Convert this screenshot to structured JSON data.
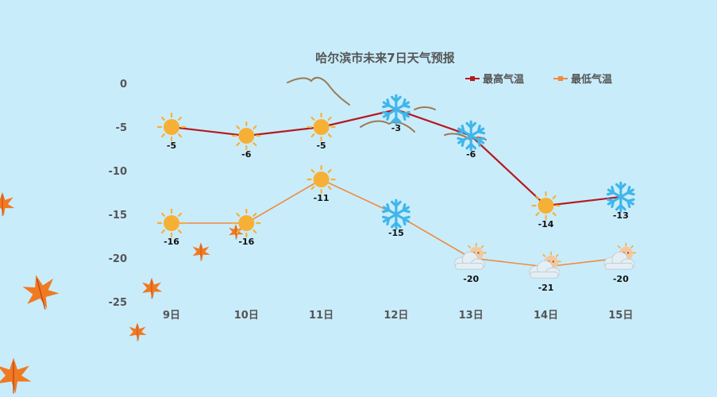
{
  "colors": {
    "background": "#c9ecfb",
    "high_line": "#b51a1f",
    "low_line": "#f08a3c",
    "sun": "#f7b036",
    "snow": "#3fb6ea",
    "text": "#555555"
  },
  "chart_data": {
    "type": "line",
    "title": "哈尔滨市未来7日天气预报",
    "categories": [
      "9日",
      "10日",
      "11日",
      "12日",
      "13日",
      "14日",
      "15日"
    ],
    "ylim": [
      -25,
      0
    ],
    "yticks": [
      0,
      -5,
      -10,
      -15,
      -20,
      -25
    ],
    "grid": false,
    "legend_position": "top-right",
    "series": [
      {
        "name": "最高气温",
        "values": [
          -5,
          -6,
          -5,
          -3,
          -6,
          -14,
          -13
        ],
        "icons": [
          "sun-icon",
          "sun-icon",
          "sun-icon",
          "snowflake-icon",
          "snowflake-icon",
          "sun-icon",
          "snowflake-icon"
        ]
      },
      {
        "name": "最低气温",
        "values": [
          -16,
          -16,
          -11,
          -15,
          -20,
          -21,
          -20
        ],
        "icons": [
          "sun-icon",
          "sun-icon",
          "sun-icon",
          "snowflake-icon",
          "cloud-sun-icon",
          "cloud-sun-icon",
          "cloud-sun-icon"
        ]
      }
    ]
  }
}
